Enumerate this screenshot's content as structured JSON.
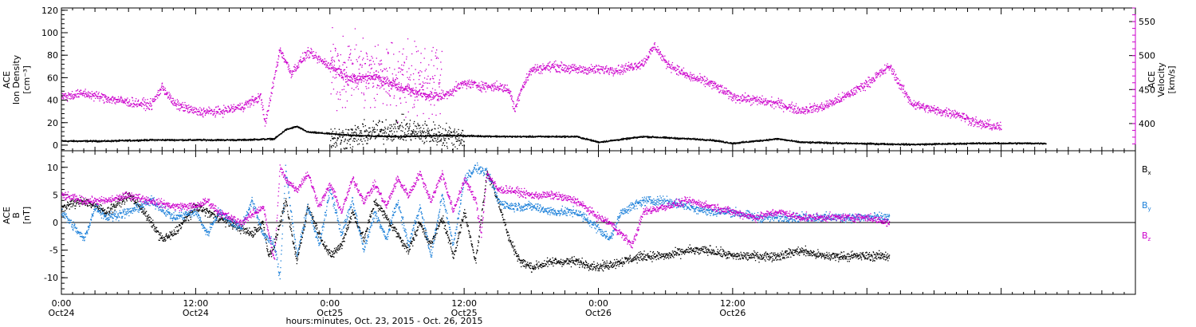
{
  "colors": {
    "black": "#000000",
    "magenta": "#cc00cc",
    "blue": "#1a7fd9",
    "axis": "#000000"
  },
  "chart_data": [
    {
      "type": "scatter",
      "panel": "top",
      "ylabel_lines": [
        "ACE",
        "Ion Density",
        "[cm⁻³]"
      ],
      "right_ylabel_lines": [
        "ACE",
        "Velocity",
        "[km/s]"
      ],
      "ylim": [
        -5,
        122
      ],
      "yticks": [
        0,
        20,
        40,
        60,
        80,
        100,
        120
      ],
      "right_ylim": [
        360,
        570
      ],
      "right_yticks": [
        400,
        450,
        500,
        550
      ],
      "series": [
        {
          "key": "density",
          "axis": "left",
          "color": "#000000",
          "noise": 0.6,
          "x": [
            0,
            4,
            8,
            12,
            16,
            19,
            20,
            21,
            22,
            26,
            30,
            34,
            40,
            46,
            48,
            52,
            58,
            60,
            64,
            66,
            70,
            76,
            82,
            88
          ],
          "y": [
            4,
            4,
            5,
            5,
            5,
            6,
            14,
            17,
            12,
            9,
            8,
            9,
            8,
            8,
            3,
            8,
            5,
            2,
            6,
            3,
            2,
            1,
            2,
            2
          ]
        },
        {
          "key": "density_bursts",
          "axis": "left",
          "color": "#000000",
          "noise": 9,
          "x": [
            24,
            26,
            28,
            30,
            32,
            34,
            36
          ],
          "y": [
            6,
            8,
            12,
            15,
            12,
            9,
            7
          ]
        },
        {
          "key": "velocity",
          "axis": "right",
          "color": "#cc00cc",
          "noise": 6,
          "x": [
            0,
            2,
            4,
            6,
            8,
            9,
            10,
            12,
            14,
            16,
            17.8,
            18.2,
            19.5,
            20.5,
            22,
            24,
            26,
            28,
            30,
            32,
            34,
            36,
            38,
            39,
            40,
            40.5,
            41,
            42,
            44,
            46,
            48,
            50,
            52,
            53,
            54,
            56,
            58,
            60,
            62,
            64,
            66,
            68,
            70,
            72,
            74,
            75,
            76,
            78,
            80,
            82,
            84
          ],
          "y": [
            440,
            445,
            438,
            432,
            428,
            455,
            430,
            418,
            418,
            425,
            440,
            400,
            510,
            475,
            505,
            485,
            465,
            470,
            455,
            445,
            440,
            460,
            455,
            455,
            450,
            420,
            450,
            480,
            485,
            480,
            480,
            480,
            490,
            515,
            490,
            470,
            460,
            440,
            435,
            430,
            420,
            425,
            440,
            460,
            485,
            455,
            430,
            420,
            415,
            400,
            395
          ]
        },
        {
          "key": "velocity_scatter",
          "axis": "right",
          "color": "#cc00cc",
          "noise": 45,
          "x": [
            24,
            26,
            28,
            30,
            32,
            34
          ],
          "y": [
            480,
            480,
            470,
            470,
            465,
            460
          ]
        }
      ]
    },
    {
      "type": "scatter",
      "panel": "bottom",
      "ylabel_lines": [
        "ACE",
        "B",
        "[nT]"
      ],
      "ylim": [
        -13,
        13
      ],
      "yticks": [
        -10,
        -5,
        0,
        5,
        10
      ],
      "zero_line": true,
      "legend": [
        "Bx",
        "By",
        "Bz"
      ],
      "legend_placement": "right",
      "xlabel": "hours:minutes, Oct. 23, 2015 - Oct. 26, 2015",
      "xlim": [
        0,
        96
      ],
      "xticks": [
        {
          "x": 0,
          "time": "0:00",
          "date": "Oct24"
        },
        {
          "x": 12,
          "time": "12:00",
          "date": "Oct24"
        },
        {
          "x": 24,
          "time": "0:00",
          "date": "Oct25"
        },
        {
          "x": 36,
          "time": "12:00",
          "date": "Oct25"
        },
        {
          "x": 48,
          "time": "0:00",
          "date": "Oct26"
        },
        {
          "x": 60,
          "time": "12:00",
          "date": "Oct26"
        }
      ],
      "series": [
        {
          "key": "Bx",
          "color": "#000000",
          "noise": 0.7,
          "x": [
            0,
            2,
            4,
            6,
            7,
            8,
            9,
            10,
            12,
            14,
            16,
            17,
            18,
            18.5,
            19,
            20,
            21,
            22,
            23,
            24,
            25,
            26,
            27,
            28,
            30,
            31,
            32,
            33,
            34,
            35,
            36,
            37,
            38,
            38.5,
            39,
            40,
            41,
            42,
            44,
            46,
            48,
            50,
            52,
            54,
            56,
            58,
            60,
            62,
            64,
            66,
            68,
            70,
            72,
            74
          ],
          "y": [
            3,
            4,
            2,
            5,
            3,
            0,
            -3,
            -2,
            3,
            1,
            -1,
            -2,
            0,
            -6,
            -4,
            4,
            -7,
            3,
            -2,
            -6,
            -4,
            2,
            -3,
            4,
            -2,
            -5,
            0,
            -4,
            1,
            -6,
            2,
            -7,
            9,
            7,
            4,
            -3,
            -7,
            -8,
            -7,
            -7,
            -8,
            -7,
            -6,
            -6,
            -5,
            -5,
            -6,
            -6,
            -6,
            -5,
            -6,
            -6,
            -6,
            -6
          ]
        },
        {
          "key": "By",
          "color": "#1a7fd9",
          "noise": 0.7,
          "x": [
            0,
            2,
            3,
            4,
            6,
            8,
            10,
            12,
            13,
            14,
            16,
            17,
            18,
            19,
            19.5,
            20,
            21,
            22,
            23,
            24,
            25,
            26,
            27,
            28,
            29,
            30,
            31,
            32,
            33,
            34,
            35,
            36,
            37,
            38,
            38.5,
            39,
            40,
            42,
            44,
            46,
            48,
            49,
            50,
            52,
            54,
            56,
            58,
            60,
            62,
            64,
            66,
            68,
            70,
            72,
            74
          ],
          "y": [
            2,
            -3,
            3,
            1,
            2,
            4,
            1,
            2,
            -2,
            2,
            -1,
            4,
            -2,
            -4,
            -10,
            10,
            -6,
            3,
            -4,
            6,
            -2,
            4,
            -5,
            2,
            -3,
            4,
            -4,
            3,
            -6,
            5,
            -4,
            8,
            10,
            9,
            7,
            4,
            3,
            3,
            2,
            2,
            -1,
            -3,
            2,
            4,
            4,
            3,
            2,
            2,
            1,
            1,
            1,
            1,
            1,
            1,
            1
          ]
        },
        {
          "key": "Bz",
          "color": "#cc00cc",
          "noise": 0.6,
          "x": [
            0,
            2,
            4,
            6,
            8,
            10,
            12,
            13,
            14,
            16,
            18,
            19,
            19.5,
            20,
            21,
            22,
            23,
            24,
            25,
            26,
            27,
            28,
            29,
            30,
            31,
            32,
            33,
            34,
            35,
            36,
            37,
            37.5,
            38,
            39,
            40,
            42,
            44,
            46,
            48,
            49,
            50,
            51,
            52,
            54,
            56,
            58,
            60,
            62,
            64,
            66,
            68,
            70,
            72,
            74
          ],
          "y": [
            5,
            4,
            4,
            5,
            4,
            3,
            3,
            4,
            2,
            0,
            3,
            -7,
            10,
            8,
            6,
            9,
            3,
            7,
            2,
            8,
            4,
            7,
            3,
            8,
            5,
            9,
            4,
            9,
            2,
            8,
            4,
            -2,
            9,
            6,
            6,
            5,
            5,
            4,
            1,
            0,
            -2,
            -4,
            2,
            3,
            4,
            3,
            2,
            1,
            2,
            1,
            1,
            1,
            1,
            0
          ]
        }
      ]
    }
  ]
}
